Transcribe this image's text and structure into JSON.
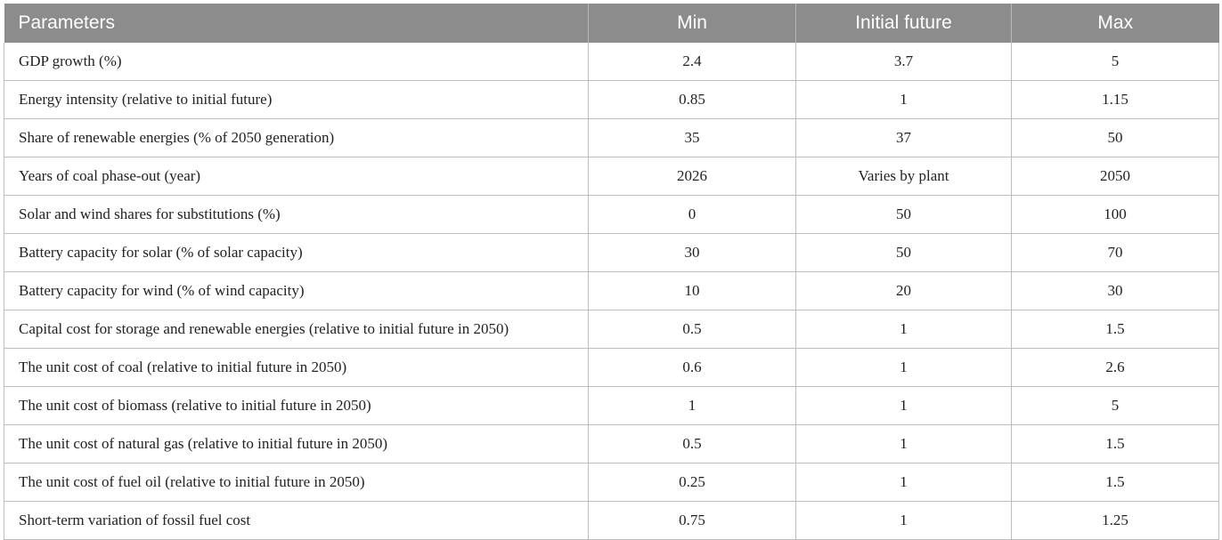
{
  "table": {
    "headers": [
      "Parameters",
      "Min",
      "Initial future",
      "Max"
    ],
    "rows": [
      [
        "GDP growth (%)",
        "2.4",
        "3.7",
        "5"
      ],
      [
        "Energy intensity (relative to initial future)",
        "0.85",
        "1",
        "1.15"
      ],
      [
        "Share of renewable energies (% of 2050 generation)",
        "35",
        "37",
        "50"
      ],
      [
        "Years of coal phase-out (year)",
        "2026",
        "Varies by plant",
        "2050"
      ],
      [
        "Solar and wind shares for substitutions (%)",
        "0",
        "50",
        "100"
      ],
      [
        "Battery capacity for solar (% of solar capacity)",
        "30",
        "50",
        "70"
      ],
      [
        "Battery capacity for wind (% of wind capacity)",
        "10",
        "20",
        "30"
      ],
      [
        "Capital cost for storage and renewable energies (relative to initial future in 2050)",
        "0.5",
        "1",
        "1.5"
      ],
      [
        "The unit cost of coal (relative to initial future in 2050)",
        "0.6",
        "1",
        "2.6"
      ],
      [
        "The unit cost of biomass (relative to initial future in 2050)",
        "1",
        "1",
        "5"
      ],
      [
        "The unit cost of natural gas (relative to initial future in 2050)",
        "0.5",
        "1",
        "1.5"
      ],
      [
        "The unit cost of fuel oil (relative to initial future in 2050)",
        "0.25",
        "1",
        "1.5"
      ],
      [
        "Short-term variation of fossil fuel cost",
        "0.75",
        "1",
        "1.25"
      ]
    ]
  },
  "colors": {
    "header_bg": "#8c8c8c",
    "header_text": "#ffffff",
    "grid_line": "#bdbdbd"
  }
}
